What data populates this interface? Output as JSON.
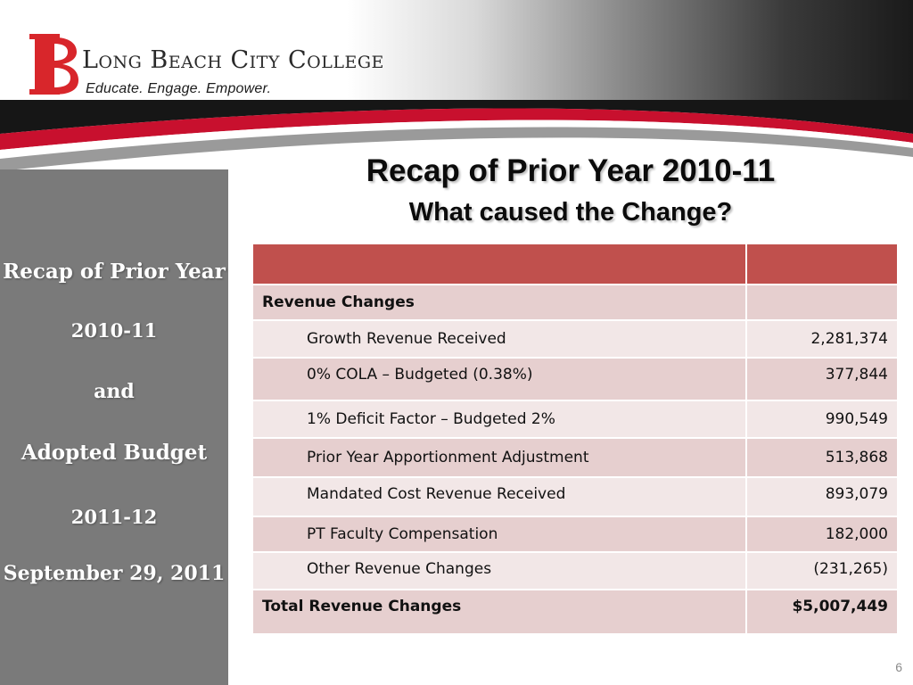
{
  "header": {
    "logo_initials": "LB",
    "college_name": "Long Beach City College",
    "tagline": "Educate. Engage. Empower."
  },
  "sidebar": {
    "title": "Recap of Prior Year",
    "year1": "2010-11",
    "conjunction": "and",
    "adopted": "Adopted Budget",
    "year2": "2011-12",
    "date": "September 29, 2011"
  },
  "slide": {
    "title": "Recap of Prior Year 2010-11",
    "subtitle": "What caused the Change?",
    "page_number": "6"
  },
  "table": {
    "section_header": "Revenue Changes",
    "rows": [
      {
        "label": "Growth Revenue Received",
        "value": "2,281,374"
      },
      {
        "label": "0% COLA – Budgeted (0.38%)",
        "value": "377,844"
      },
      {
        "label": "1% Deficit Factor – Budgeted 2%",
        "value": "990,549"
      },
      {
        "label": "Prior Year Apportionment Adjustment",
        "value": "513,868"
      },
      {
        "label": "Mandated Cost Revenue Received",
        "value": "893,079"
      },
      {
        "label": "PT Faculty Compensation",
        "value": "182,000"
      },
      {
        "label": "Other Revenue Changes",
        "value": "(231,265)"
      }
    ],
    "total_label": "Total Revenue Changes",
    "total_value": "$5,007,449"
  },
  "colors": {
    "brand_red": "#c0504d",
    "logo_red": "#d8262b",
    "panel_grey": "#7a7a7a",
    "row_dark": "#e6cfcf",
    "row_light": "#f2e7e7"
  }
}
